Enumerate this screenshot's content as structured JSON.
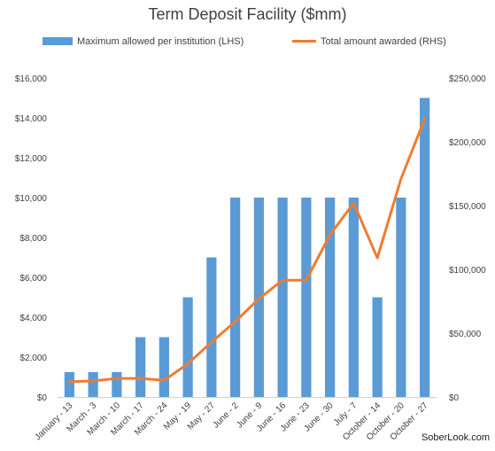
{
  "chart_data": {
    "type": "bar",
    "title": "Term Deposit Facility ($mm)",
    "categories": [
      "January - 13",
      "March - 3",
      "March - 10",
      "March - 17",
      "March - 24",
      "May - 19",
      "May - 27",
      "June - 2",
      "June - 9",
      "June - 16",
      "June - 23",
      "June - 30",
      "July - 7",
      "October - 14",
      "October - 20",
      "October - 27"
    ],
    "series": [
      {
        "name": "Maximum allowed per institution (LHS)",
        "type": "bar",
        "axis": "left",
        "color": "#5B9BD5",
        "values": [
          1250,
          1250,
          1250,
          3000,
          3000,
          5000,
          7000,
          10000,
          10000,
          10000,
          10000,
          10000,
          10000,
          5000,
          10000,
          15000
        ]
      },
      {
        "name": "Total amount awarded (RHS)",
        "type": "line",
        "axis": "right",
        "color": "#ED7D31",
        "values": [
          12000,
          12500,
          14500,
          14500,
          13000,
          26000,
          43000,
          59000,
          77000,
          91500,
          91500,
          127000,
          152000,
          109000,
          171000,
          218000
        ]
      }
    ],
    "y_left": {
      "ylim": [
        0,
        16000
      ],
      "ticks": [
        "$0",
        "$2,000",
        "$4,000",
        "$6,000",
        "$8,000",
        "$10,000",
        "$12,000",
        "$14,000",
        "$16,000"
      ]
    },
    "y_right": {
      "ylim": [
        0,
        250000
      ],
      "ticks": [
        "$0",
        "$50,000",
        "$100,000",
        "$150,000",
        "$200,000",
        "$250,000"
      ]
    },
    "legend_position": "top",
    "grid": false
  },
  "watermark": "SoberLook.com"
}
